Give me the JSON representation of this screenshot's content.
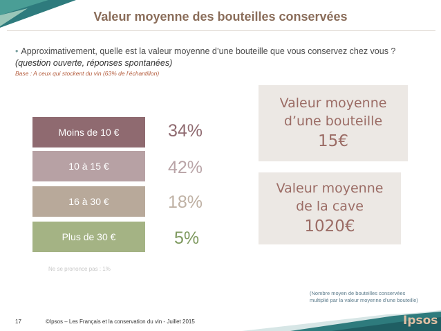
{
  "title": "Valeur moyenne des bouteilles conservées",
  "question": "Approximativement, quelle est la valeur moyenne d’une bouteille que vous conservez chez vous ?",
  "question_type": "(question ouverte, réponses spontanées)",
  "base": "Base : A ceux qui stockent du vin (63% de l’échantillon)",
  "categories": [
    {
      "label": "Moins de 10 €",
      "pct": "34%",
      "color": "#8f6a70",
      "pct_color": "#8f6a70"
    },
    {
      "label": "10 à 15 €",
      "pct": "42%",
      "color": "#b7a1a4",
      "pct_color": "#b9a4a7"
    },
    {
      "label": "16 à 30 €",
      "pct": "18%",
      "color": "#b8a99a",
      "pct_color": "#bfb1a4"
    },
    {
      "label": "Plus de 30 €",
      "pct": "5%",
      "color": "#a4b384",
      "pct_color": "#7f9a60"
    }
  ],
  "no_answer": "Ne se prononce pas : 1%",
  "callout_bottle": {
    "line1": "Valeur moyenne",
    "line2": "d’une bouteille",
    "value": "15€"
  },
  "callout_cellar": {
    "line1": "Valeur moyenne",
    "line2": "de la cave",
    "value": "1020€"
  },
  "footnote_line1": "(Nombre moyen de bouteilles conservées",
  "footnote_line2": "multiplié par la valeur moyenne d’une bouteille)",
  "page_number": "17",
  "copyright": "©Ipsos – Les Français et la conservation du vin - Juillet 2015",
  "logo": "Ipsos"
}
